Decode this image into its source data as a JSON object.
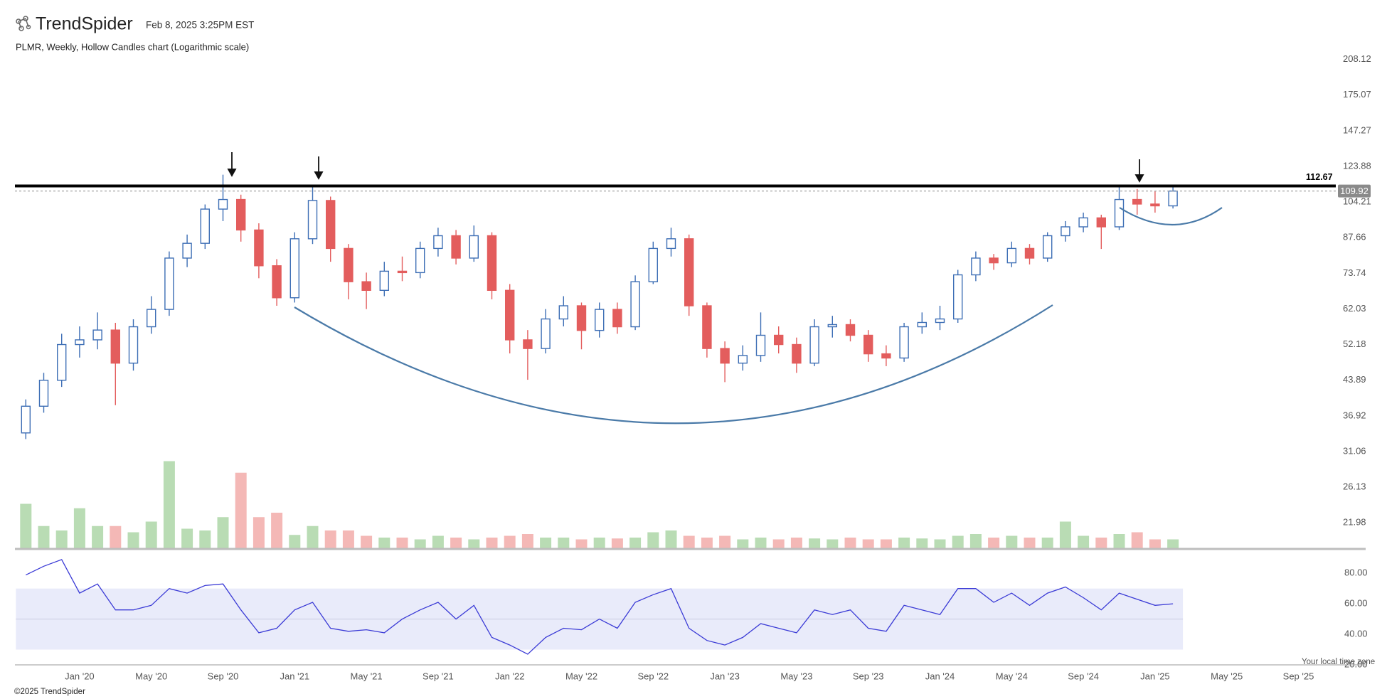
{
  "header": {
    "brand": "TrendSpider",
    "timestamp": "Feb 8, 2025 3:25PM EST"
  },
  "footer": "©2025 TrendSpider",
  "chart_data": {
    "type": "candlestick",
    "title": "PLMR, Weekly, Hollow Candles chart (Logarithmic scale)",
    "categories": [
      null,
      null,
      null,
      "Jan '20",
      null,
      null,
      null,
      "May '20",
      null,
      null,
      null,
      "Sep '20",
      null,
      null,
      null,
      "Jan '21",
      null,
      null,
      null,
      "May '21",
      null,
      null,
      null,
      "Sep '21",
      null,
      null,
      null,
      "Jan '22",
      null,
      null,
      null,
      "May '22",
      null,
      null,
      null,
      "Sep '22",
      null,
      null,
      null,
      "Jan '23",
      null,
      null,
      null,
      "May '23",
      null,
      null,
      null,
      "Sep '23",
      null,
      null,
      null,
      "Jan '24",
      null,
      null,
      null,
      "May '24",
      null,
      null,
      null,
      "Sep '24",
      null,
      null,
      null,
      "Jan '25",
      null,
      null,
      null,
      "May '25",
      null,
      null,
      null,
      "Sep '25"
    ],
    "open": [
      34,
      38.7,
      43.9,
      52.2,
      53.4,
      56.0,
      47.7,
      56.9,
      61.9,
      79.4,
      85.3,
      100.7,
      105.5,
      91.0,
      76.5,
      65.5,
      87.2,
      105.0,
      83.2,
      70.8,
      67.9,
      74.5,
      74.0,
      83.2,
      88.5,
      79.4,
      88.5,
      67.9,
      53.4,
      51.2,
      59.1,
      63.0,
      55.9,
      61.9,
      56.9,
      70.8,
      83.2,
      87.2,
      63.0,
      51.2,
      47.7,
      49.5,
      54.6,
      52.2,
      47.7,
      56.9,
      57.5,
      54.6,
      49.9,
      48.9,
      56.9,
      58.1,
      59.1,
      73.2,
      79.4,
      77.6,
      83.2,
      79.4,
      88.5,
      92.4,
      96.5,
      92.4,
      105.5,
      103.2,
      102.3,
      null,
      null,
      null,
      null,
      null,
      null,
      null
    ],
    "high": [
      40,
      45.5,
      55,
      57,
      61,
      58,
      59,
      66,
      82,
      89,
      103,
      119,
      108,
      94,
      79,
      90,
      112.7,
      107,
      85,
      74,
      78,
      80,
      86,
      92,
      91,
      93,
      90,
      70,
      56,
      62,
      66,
      64,
      64,
      64,
      73,
      86,
      92,
      89,
      64,
      53,
      52,
      61,
      57,
      54,
      59,
      60,
      59,
      56,
      52,
      58,
      61,
      63,
      75,
      82,
      81,
      86,
      85,
      90,
      95,
      99,
      98,
      112,
      111,
      110,
      112,
      null,
      null,
      null,
      null,
      null,
      null,
      null
    ],
    "low": [
      33,
      37.5,
      42.5,
      49,
      51,
      38.9,
      46,
      55,
      60,
      76,
      83,
      95,
      86,
      72,
      63,
      64,
      85,
      78,
      65,
      62,
      66,
      71,
      72,
      80,
      77,
      78,
      65,
      50,
      44,
      50,
      57,
      51,
      54,
      55,
      56,
      70,
      80,
      60,
      49,
      43.5,
      46,
      48,
      50,
      45.5,
      47,
      54,
      53,
      48,
      47,
      48,
      55,
      56,
      58,
      71,
      75,
      76,
      77,
      78,
      86,
      90,
      83,
      91,
      98,
      99,
      101,
      null,
      null,
      null,
      null,
      null,
      null,
      null
    ],
    "close": [
      38.7,
      43.9,
      52.2,
      53.4,
      56.0,
      47.7,
      56.9,
      61.9,
      79.4,
      85.3,
      100.7,
      105.5,
      91.0,
      76.5,
      65.5,
      87.2,
      105.0,
      83.2,
      70.8,
      67.9,
      74.5,
      74.0,
      83.2,
      88.5,
      79.4,
      88.5,
      67.9,
      53.4,
      51.2,
      59.1,
      63.0,
      55.9,
      61.9,
      56.9,
      70.8,
      83.2,
      87.2,
      63.0,
      51.2,
      47.7,
      49.5,
      54.6,
      52.2,
      47.7,
      56.9,
      57.5,
      54.6,
      49.9,
      48.9,
      56.9,
      58.1,
      59.1,
      73.2,
      79.4,
      77.6,
      83.2,
      79.4,
      88.5,
      92.4,
      96.5,
      92.4,
      105.5,
      103.2,
      102.3,
      109.92,
      null,
      null,
      null,
      null,
      null,
      null,
      null
    ],
    "volume": [
      50,
      25,
      20,
      45,
      25,
      25,
      18,
      30,
      98,
      22,
      20,
      35,
      85,
      35,
      40,
      15,
      25,
      20,
      20,
      14,
      12,
      12,
      10,
      14,
      12,
      10,
      12,
      14,
      16,
      12,
      12,
      10,
      12,
      11,
      12,
      18,
      20,
      14,
      12,
      14,
      10,
      12,
      10,
      12,
      11,
      10,
      12,
      10,
      10,
      12,
      11,
      10,
      14,
      16,
      12,
      14,
      12,
      12,
      30,
      14,
      12,
      16,
      18,
      10,
      10,
      null,
      null,
      null,
      null,
      null,
      null,
      null
    ],
    "volume_ylim": [
      0,
      100
    ],
    "ylim": [
      19.43,
      214.4
    ],
    "yticks": [
      208.12,
      175.07,
      147.27,
      123.88,
      104.21,
      87.66,
      73.74,
      62.03,
      52.18,
      43.89,
      36.92,
      31.06,
      26.13,
      21.98
    ],
    "log_scale": true,
    "up_color": "#3d6eb5",
    "down_color": "#e35d5d",
    "up_volume_color": "#b9dcb4",
    "down_volume_color": "#f4b8b6",
    "resistance": 112.67,
    "last_price": 109.92,
    "rsi": {
      "values": [
        78.9,
        84.6,
        89,
        67,
        73,
        56,
        56,
        59,
        70,
        67,
        72,
        73,
        56,
        41,
        44,
        56,
        61,
        44,
        42,
        43,
        41,
        50,
        56,
        61,
        50,
        59,
        38,
        33,
        27,
        38,
        44,
        43,
        50,
        44,
        61,
        66,
        70,
        44,
        36,
        33,
        38,
        47,
        44,
        41,
        56,
        53,
        56,
        44,
        42,
        59,
        56,
        53,
        70,
        70,
        61,
        67,
        59,
        67,
        71,
        64,
        56,
        67,
        63,
        59,
        60,
        null,
        null,
        null,
        null,
        null,
        null,
        null
      ],
      "color": "#3b3bd6",
      "band": [
        30,
        70
      ],
      "ylim": [
        20,
        95
      ],
      "yticks": [
        {
          "value": 80,
          "label": "80.00"
        },
        {
          "value": 60,
          "label": "60.00"
        },
        {
          "value": 40,
          "label": "40.00"
        },
        {
          "value": 20,
          "label": "20.00"
        }
      ]
    },
    "timezone_note": "Your local time zone"
  }
}
